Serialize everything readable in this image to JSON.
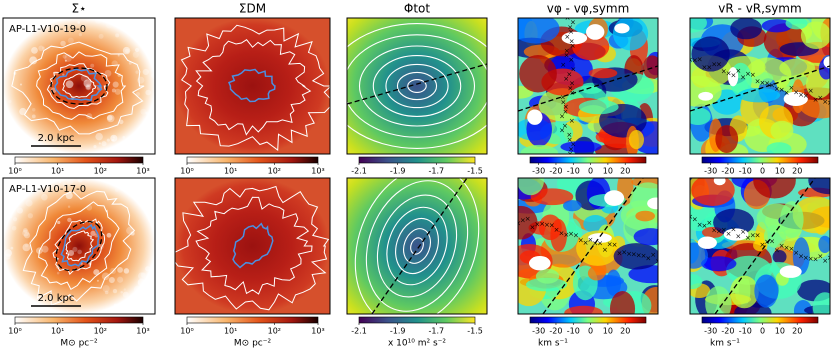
{
  "columns": [
    {
      "title": "Σ⋆",
      "ticks": [
        "10⁰",
        "10¹",
        "10²",
        "10³"
      ],
      "unit": "M⊙ pc⁻²"
    },
    {
      "title": "ΣDM",
      "ticks": [
        "10⁰",
        "10¹",
        "10²",
        "10³"
      ],
      "unit": "M⊙ pc⁻²"
    },
    {
      "title": "Φtot",
      "ticks": [
        "-2.1",
        "-1.9",
        "-1.7",
        "-1.5"
      ],
      "unit": "x 10¹⁰ m² s⁻²"
    },
    {
      "title": "vφ - vφ,symm",
      "ticks": [
        "-30",
        "-20",
        "-10",
        "0",
        "10",
        "20"
      ],
      "unit": "km s⁻¹"
    },
    {
      "title": "vR - vR,symm",
      "ticks": [
        "-30",
        "-20",
        "-10",
        "0",
        "10",
        "20"
      ],
      "unit": "km s⁻¹"
    }
  ],
  "rows": [
    {
      "label": "AP-L1-V10-19-0",
      "scale": "2.0 kpc"
    },
    {
      "label": "AP-L1-V10-17-0",
      "scale": "2.0 kpc"
    }
  ]
}
